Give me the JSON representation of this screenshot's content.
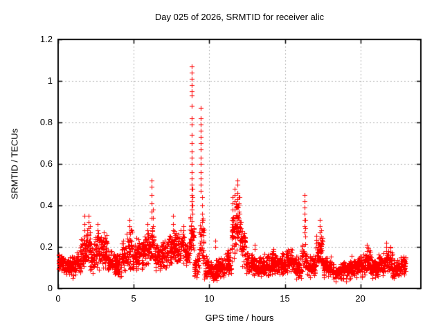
{
  "chart_data": {
    "type": "scatter",
    "title": "Day 025 of 2026, SRMTID for receiver alic",
    "xlabel": "GPS time / hours",
    "ylabel": "SRMTID / TECUs",
    "xlim": [
      0,
      24
    ],
    "ylim": [
      0,
      1.2
    ],
    "xticks": [
      0,
      5,
      10,
      15,
      20
    ],
    "xtick_labels": [
      "0",
      "5",
      "10",
      "15",
      "20"
    ],
    "yticks": [
      0,
      0.2,
      0.4,
      0.6,
      0.8,
      1,
      1.2
    ],
    "ytick_labels": [
      "0",
      "0.2",
      "0.4",
      "0.6",
      "0.8",
      "1",
      "1.2"
    ],
    "grid": true,
    "grid_style": "dashed",
    "grid_color": "#b0b0b0",
    "axis_color": "#000000",
    "background": "#ffffff",
    "legend": "none",
    "marker": "plus",
    "marker_color": "#ff0000",
    "marker_size": 7,
    "x_data_range_hours": [
      0,
      23
    ],
    "seed": 20260125,
    "peaks": [
      {
        "x": 8.85,
        "y": 1.07
      },
      {
        "x": 9.45,
        "y": 0.87
      },
      {
        "x": 6.2,
        "y": 0.52
      },
      {
        "x": 11.85,
        "y": 0.52
      },
      {
        "x": 16.3,
        "y": 0.45
      },
      {
        "x": 1.72,
        "y": 0.35
      },
      {
        "x": 2.0,
        "y": 0.35
      },
      {
        "x": 7.6,
        "y": 0.35
      },
      {
        "x": 4.7,
        "y": 0.33
      },
      {
        "x": 17.3,
        "y": 0.33
      }
    ],
    "band_format": "[x_start_hours, x_end_hours, y_min, y_max, point_count]",
    "baseline_bands": [
      [
        0.0,
        0.3,
        0.08,
        0.17,
        36
      ],
      [
        0.3,
        0.7,
        0.06,
        0.16,
        48
      ],
      [
        0.7,
        1.1,
        0.05,
        0.17,
        48
      ],
      [
        1.1,
        1.5,
        0.06,
        0.2,
        48
      ],
      [
        1.5,
        1.78,
        0.08,
        0.27,
        34
      ],
      [
        1.78,
        2.1,
        0.08,
        0.3,
        40
      ],
      [
        2.1,
        2.45,
        0.07,
        0.24,
        42
      ],
      [
        2.45,
        2.85,
        0.08,
        0.29,
        48
      ],
      [
        2.85,
        3.25,
        0.08,
        0.26,
        48
      ],
      [
        3.25,
        3.7,
        0.06,
        0.19,
        54
      ],
      [
        3.7,
        4.2,
        0.05,
        0.18,
        60
      ],
      [
        4.2,
        4.55,
        0.07,
        0.23,
        42
      ],
      [
        4.55,
        4.9,
        0.09,
        0.3,
        42
      ],
      [
        4.9,
        5.3,
        0.07,
        0.25,
        48
      ],
      [
        5.3,
        5.7,
        0.08,
        0.26,
        48
      ],
      [
        5.7,
        6.05,
        0.09,
        0.28,
        42
      ],
      [
        6.05,
        6.35,
        0.1,
        0.31,
        36
      ],
      [
        6.35,
        6.8,
        0.07,
        0.22,
        54
      ],
      [
        6.8,
        7.25,
        0.08,
        0.24,
        54
      ],
      [
        7.25,
        7.65,
        0.1,
        0.28,
        48
      ],
      [
        7.65,
        8.1,
        0.1,
        0.3,
        54
      ],
      [
        8.1,
        8.45,
        0.12,
        0.29,
        42
      ],
      [
        8.45,
        8.72,
        0.1,
        0.24,
        32
      ],
      [
        8.72,
        9.0,
        0.12,
        0.36,
        34
      ],
      [
        9.0,
        9.35,
        0.05,
        0.18,
        42
      ],
      [
        9.35,
        9.65,
        0.1,
        0.36,
        36
      ],
      [
        9.65,
        10.0,
        0.04,
        0.16,
        42
      ],
      [
        10.0,
        10.5,
        0.03,
        0.14,
        60
      ],
      [
        10.5,
        11.0,
        0.05,
        0.16,
        60
      ],
      [
        11.0,
        11.45,
        0.06,
        0.2,
        54
      ],
      [
        11.45,
        11.75,
        0.12,
        0.38,
        36
      ],
      [
        11.75,
        12.05,
        0.15,
        0.45,
        36
      ],
      [
        12.05,
        12.4,
        0.1,
        0.3,
        42
      ],
      [
        12.4,
        12.9,
        0.06,
        0.18,
        60
      ],
      [
        12.9,
        13.5,
        0.05,
        0.16,
        72
      ],
      [
        13.5,
        14.1,
        0.05,
        0.17,
        72
      ],
      [
        14.1,
        14.6,
        0.06,
        0.19,
        60
      ],
      [
        14.6,
        15.1,
        0.05,
        0.18,
        60
      ],
      [
        15.1,
        15.6,
        0.06,
        0.2,
        60
      ],
      [
        15.6,
        16.1,
        0.04,
        0.16,
        60
      ],
      [
        16.1,
        16.45,
        0.08,
        0.24,
        42
      ],
      [
        16.45,
        17.05,
        0.05,
        0.17,
        72
      ],
      [
        17.05,
        17.5,
        0.08,
        0.26,
        54
      ],
      [
        17.5,
        18.1,
        0.05,
        0.16,
        72
      ],
      [
        18.1,
        18.7,
        0.03,
        0.13,
        72
      ],
      [
        18.7,
        19.3,
        0.03,
        0.14,
        72
      ],
      [
        19.3,
        19.8,
        0.04,
        0.16,
        60
      ],
      [
        19.8,
        20.3,
        0.05,
        0.17,
        60
      ],
      [
        20.3,
        20.7,
        0.06,
        0.2,
        48
      ],
      [
        20.7,
        21.2,
        0.04,
        0.15,
        60
      ],
      [
        21.2,
        21.7,
        0.06,
        0.19,
        60
      ],
      [
        21.7,
        22.1,
        0.07,
        0.21,
        48
      ],
      [
        22.1,
        22.55,
        0.04,
        0.14,
        54
      ],
      [
        22.55,
        23.0,
        0.05,
        0.17,
        54
      ]
    ],
    "spike_format": "[x_hours, [y_values]]",
    "spike_columns": [
      [
        1.72,
        [
          0.22,
          0.25,
          0.28,
          0.31,
          0.35
        ]
      ],
      [
        2.0,
        [
          0.26,
          0.29,
          0.32,
          0.35
        ]
      ],
      [
        2.12,
        [
          0.24,
          0.27,
          0.3
        ]
      ],
      [
        2.6,
        [
          0.25,
          0.28,
          0.31
        ]
      ],
      [
        3.0,
        [
          0.24,
          0.27
        ]
      ],
      [
        4.7,
        [
          0.24,
          0.27,
          0.3,
          0.33
        ]
      ],
      [
        5.9,
        [
          0.25,
          0.28,
          0.31
        ]
      ],
      [
        6.2,
        [
          0.34,
          0.37,
          0.41,
          0.45,
          0.49,
          0.52
        ]
      ],
      [
        6.27,
        [
          0.3,
          0.34,
          0.38
        ]
      ],
      [
        7.6,
        [
          0.28,
          0.31,
          0.35
        ]
      ],
      [
        8.3,
        [
          0.25,
          0.28,
          0.3
        ]
      ],
      [
        8.85,
        [
          0.38,
          0.4,
          0.42,
          0.45,
          0.48,
          0.5,
          0.53,
          0.56,
          0.6,
          0.63,
          0.66,
          0.7,
          0.74,
          0.79,
          0.82,
          0.88,
          0.93,
          0.95,
          0.98,
          1.01,
          1.04,
          1.07
        ]
      ],
      [
        8.9,
        [
          0.36,
          0.4,
          0.44,
          0.48
        ]
      ],
      [
        9.45,
        [
          0.47,
          0.5,
          0.53,
          0.56,
          0.6,
          0.63,
          0.67,
          0.7,
          0.73,
          0.76,
          0.79,
          0.82,
          0.87
        ]
      ],
      [
        9.52,
        [
          0.28,
          0.32,
          0.36,
          0.4,
          0.44
        ]
      ],
      [
        10.4,
        [
          0.2,
          0.23
        ]
      ],
      [
        11.55,
        [
          0.25,
          0.28,
          0.31,
          0.34,
          0.38,
          0.41,
          0.44
        ]
      ],
      [
        11.7,
        [
          0.3,
          0.34,
          0.38,
          0.42,
          0.45,
          0.48
        ]
      ],
      [
        11.85,
        [
          0.35,
          0.39,
          0.43,
          0.46,
          0.5,
          0.52
        ]
      ],
      [
        11.95,
        [
          0.33,
          0.37,
          0.41,
          0.44
        ]
      ],
      [
        12.1,
        [
          0.26,
          0.29,
          0.32
        ]
      ],
      [
        13.0,
        [
          0.19,
          0.21
        ]
      ],
      [
        16.3,
        [
          0.27,
          0.3,
          0.33,
          0.36,
          0.39,
          0.42,
          0.45
        ]
      ],
      [
        16.37,
        [
          0.25,
          0.29,
          0.33
        ]
      ],
      [
        17.3,
        [
          0.24,
          0.27,
          0.3,
          0.33
        ]
      ],
      [
        17.42,
        [
          0.22,
          0.25,
          0.28
        ]
      ],
      [
        20.45,
        [
          0.18,
          0.2,
          0.21
        ]
      ],
      [
        21.7,
        [
          0.18,
          0.2,
          0.22
        ]
      ]
    ]
  }
}
